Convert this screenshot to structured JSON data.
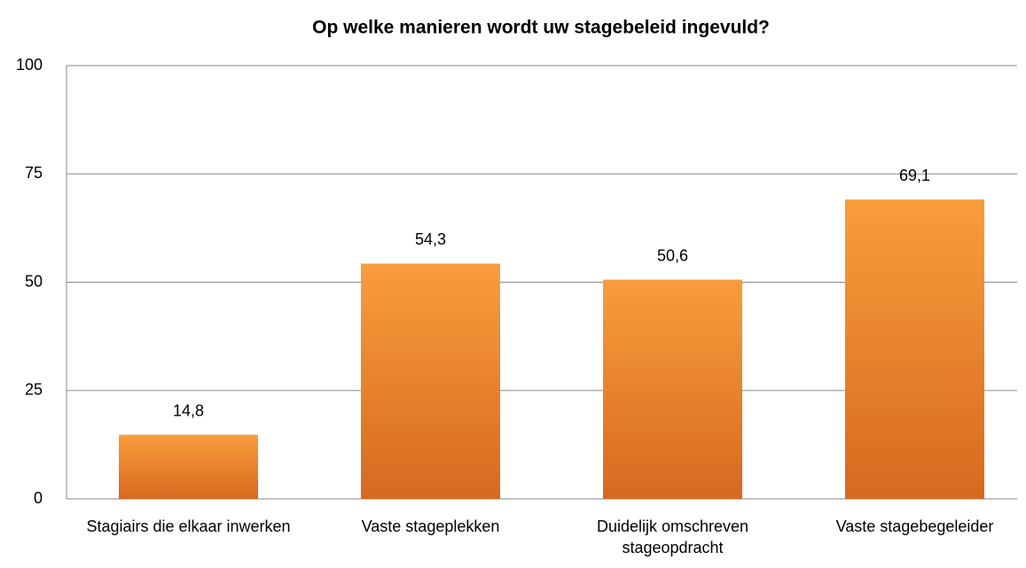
{
  "chart_data": {
    "type": "bar",
    "title": "Op welke manieren wordt uw stagebeleid ingevuld?",
    "categories": [
      "Stagiairs die elkaar inwerken",
      "Vaste stageplekken",
      "Duidelijk omschreven stageopdracht",
      "Vaste stagebegeleider"
    ],
    "values": [
      14.8,
      54.3,
      50.6,
      69.1
    ],
    "value_labels": [
      "14,8",
      "54,3",
      "50,6",
      "69,1"
    ],
    "color": "#f79a3a",
    "ylim": [
      0,
      100
    ],
    "yticks": [
      0,
      25,
      50,
      75,
      100
    ],
    "grid": true
  }
}
